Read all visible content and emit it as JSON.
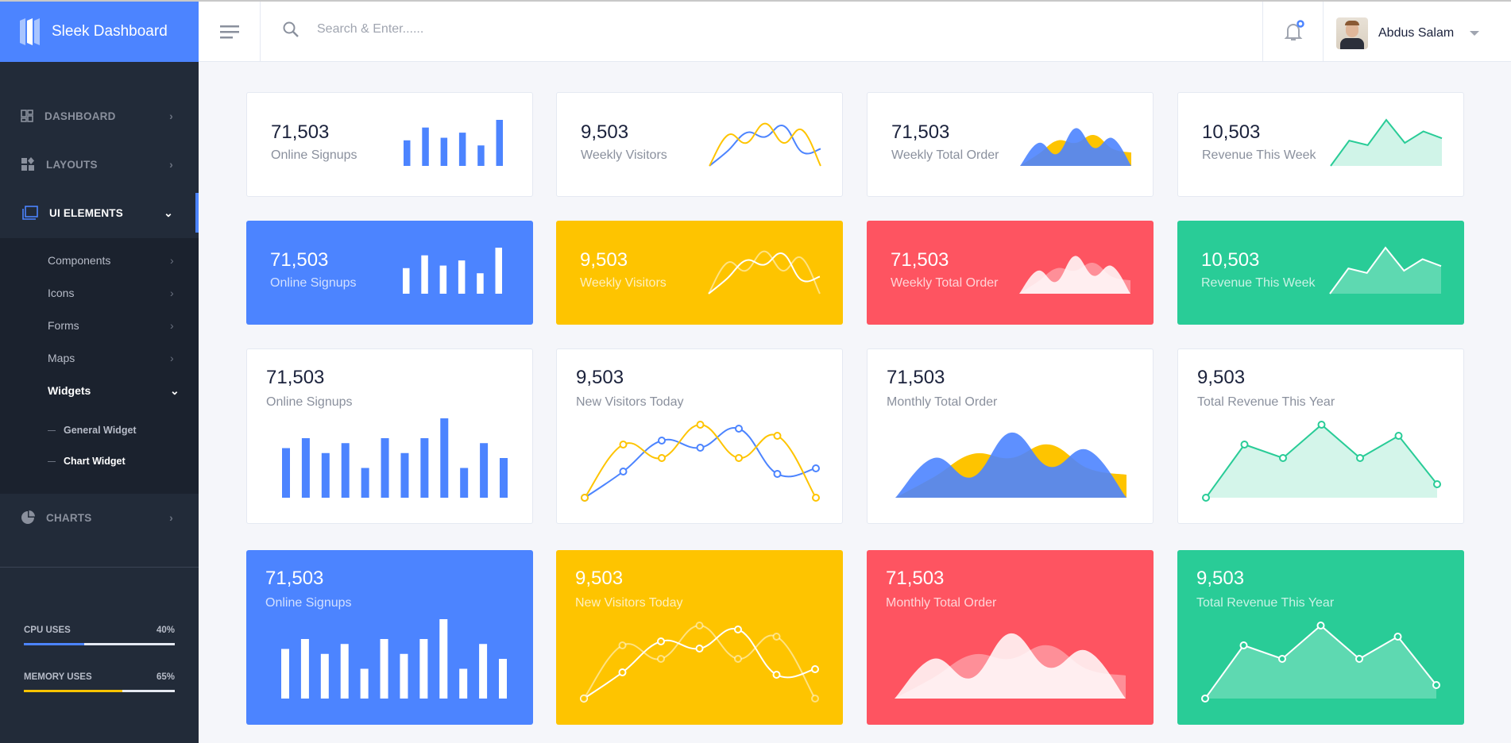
{
  "header": {
    "brand": "Sleek Dashboard",
    "search_placeholder": "Search & Enter......",
    "user_name": "Abdus Salam"
  },
  "sidebar": {
    "items": [
      {
        "label": "DASHBOARD",
        "icon": "dashboard-icon"
      },
      {
        "label": "LAYOUTS",
        "icon": "layouts-icon"
      },
      {
        "label": "UI ELEMENTS",
        "icon": "folder-icon"
      },
      {
        "label": "CHARTS",
        "icon": "pie-chart-icon"
      }
    ],
    "sub_items": [
      "Components",
      "Icons",
      "Forms",
      "Maps",
      "Widgets"
    ],
    "widget_items": [
      "General Widget",
      "Chart Widget"
    ],
    "cpu": {
      "label": "CPU USES",
      "value_text": "40%",
      "percent": 40,
      "color": "#4c84ff"
    },
    "memory": {
      "label": "MEMORY USES",
      "value_text": "65%",
      "percent": 65,
      "color": "#fec400"
    }
  },
  "colors": {
    "blue": "#4c84ff",
    "yellow": "#fec400",
    "red": "#fe5461",
    "green": "#29cc97"
  },
  "cards": [
    {
      "value": "71,503",
      "label": "Online Signups",
      "theme": "white",
      "chart": 0
    },
    {
      "value": "9,503",
      "label": "Weekly Visitors",
      "theme": "white",
      "chart": 2
    },
    {
      "value": "71,503",
      "label": "Weekly Total Order",
      "theme": "white",
      "chart": 3
    },
    {
      "value": "10,503",
      "label": "Revenue This Week",
      "theme": "white",
      "chart": 4
    },
    {
      "value": "71,503",
      "label": "Online Signups",
      "theme": "blue",
      "chart": 0
    },
    {
      "value": "9,503",
      "label": "Weekly Visitors",
      "theme": "yellow",
      "chart": 2
    },
    {
      "value": "71,503",
      "label": "Weekly Total Order",
      "theme": "red",
      "chart": 3
    },
    {
      "value": "10,503",
      "label": "Revenue This Week",
      "theme": "green",
      "chart": 4
    },
    {
      "value": "71,503",
      "label": "Online Signups",
      "theme": "white",
      "chart": 1
    },
    {
      "value": "9,503",
      "label": "New Visitors Today",
      "theme": "white",
      "chart": 2
    },
    {
      "value": "71,503",
      "label": "Monthly Total Order",
      "theme": "white",
      "chart": 3
    },
    {
      "value": "9,503",
      "label": "Total Revenue This Year",
      "theme": "white",
      "chart": 5
    },
    {
      "value": "71,503",
      "label": "Online Signups",
      "theme": "blue",
      "chart": 1
    },
    {
      "value": "9,503",
      "label": "New Visitors Today",
      "theme": "yellow",
      "chart": 2
    },
    {
      "value": "71,503",
      "label": "Monthly Total Order",
      "theme": "red",
      "chart": 3
    },
    {
      "value": "9,503",
      "label": "Total Revenue This Year",
      "theme": "green",
      "chart": 5
    }
  ],
  "chart_data": [
    {
      "type": "bar",
      "values": [
        50,
        75,
        55,
        65,
        40,
        90
      ],
      "ylim": [
        0,
        90
      ]
    },
    {
      "type": "bar",
      "values": [
        50,
        60,
        45,
        55,
        30,
        60,
        45,
        60,
        80,
        30,
        55,
        40
      ],
      "ylim": [
        0,
        80
      ]
    },
    {
      "type": "line",
      "smooth": true,
      "ylim": [
        0,
        100
      ],
      "series": [
        {
          "values": [
            0,
            33,
            72,
            63,
            87,
            30,
            37
          ],
          "color": "#4c84ff"
        },
        {
          "values": [
            0,
            67,
            50,
            92,
            50,
            78,
            0
          ],
          "color": "#fec400"
        }
      ]
    },
    {
      "type": "area",
      "smooth": true,
      "ylim": [
        0,
        100
      ],
      "series": [
        {
          "values": [
            0,
            26,
            55,
            50,
            67,
            37,
            29
          ],
          "color": "#fec400"
        },
        {
          "values": [
            0,
            50,
            26,
            82,
            39,
            60,
            0
          ],
          "color": "#4c84ff"
        }
      ]
    },
    {
      "type": "area",
      "smooth": false,
      "ylim": [
        0,
        100
      ],
      "values": [
        0,
        55,
        45,
        100,
        50,
        75,
        60
      ],
      "color": "#29cc97"
    },
    {
      "type": "line",
      "smooth": false,
      "area": true,
      "ylim": [
        0,
        100
      ],
      "values": [
        0,
        67,
        50,
        92,
        50,
        78,
        17
      ],
      "color": "#29cc97"
    }
  ]
}
